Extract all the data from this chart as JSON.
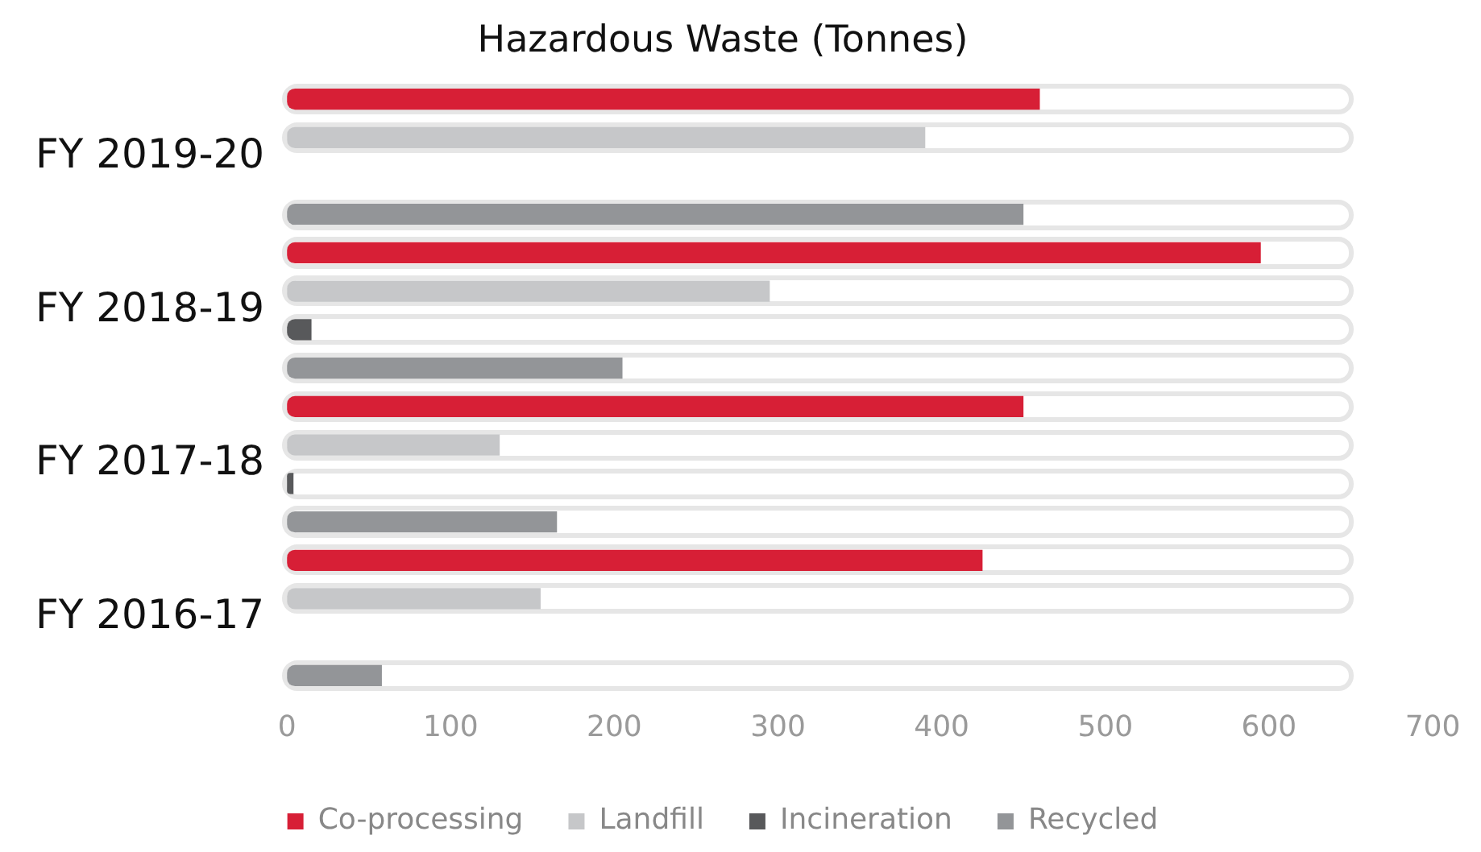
{
  "chart_data": {
    "type": "bar",
    "orientation": "horizontal",
    "title": "Hazardous Waste (Tonnes)",
    "categories": [
      "FY 2019-20",
      "FY 2018-19",
      "FY 2017-18",
      "FY 2016-17"
    ],
    "series": [
      {
        "name": "Co-processing",
        "color": "#d71f36",
        "values": [
          460,
          595,
          450,
          425
        ]
      },
      {
        "name": "Landfill",
        "color": "#c6c7c9",
        "values": [
          390,
          295,
          130,
          155
        ]
      },
      {
        "name": "Incineration",
        "color": "#58595b",
        "values": [
          null,
          15,
          4,
          null
        ]
      },
      {
        "name": "Recycled",
        "color": "#939598",
        "values": [
          450,
          205,
          165,
          58
        ]
      }
    ],
    "xlim": [
      0,
      700
    ],
    "xticks": [
      0,
      100,
      200,
      300,
      400,
      500,
      600,
      700
    ],
    "grid": false,
    "legend": "bottom"
  }
}
